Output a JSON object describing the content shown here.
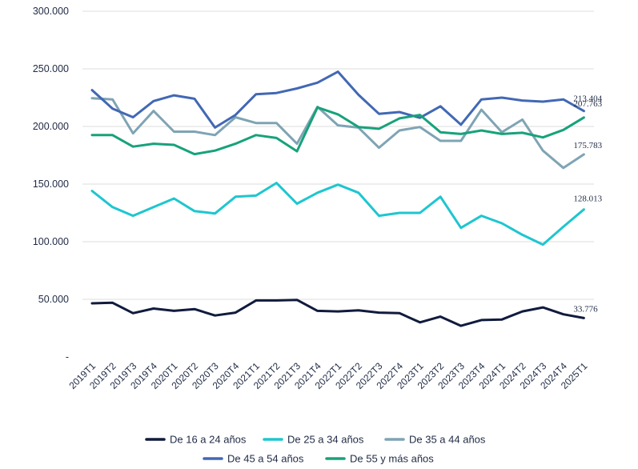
{
  "chart_data": {
    "type": "line",
    "title": "",
    "xlabel": "",
    "ylabel": "",
    "ylim": [
      0,
      300000
    ],
    "y_ticks": [
      {
        "value": 0,
        "label": "-"
      },
      {
        "value": 50000,
        "label": "50.000"
      },
      {
        "value": 100000,
        "label": "100.000"
      },
      {
        "value": 150000,
        "label": "150.000"
      },
      {
        "value": 200000,
        "label": "200.000"
      },
      {
        "value": 250000,
        "label": "250.000"
      },
      {
        "value": 300000,
        "label": "300.000"
      }
    ],
    "grid": true,
    "legend_position": "bottom",
    "categories": [
      "2019T1",
      "2019T2",
      "2019T3",
      "2019T4",
      "2020T1",
      "2020T2",
      "2020T3",
      "2020T4",
      "2021T1",
      "2021T2",
      "2021T3",
      "2021T4",
      "2022T1",
      "2022T2",
      "2022T3",
      "2022T4",
      "2023T1",
      "2023T2",
      "2023T3",
      "2023T4",
      "2024T1",
      "2024T2",
      "2024T3",
      "2024T4",
      "2025T1"
    ],
    "series": [
      {
        "name": "De 16 a 24 años",
        "color": "#101b3d",
        "end_label": "33.776",
        "values": [
          46500,
          47000,
          38000,
          42000,
          40000,
          41500,
          36000,
          38500,
          49000,
          49000,
          49500,
          40000,
          39500,
          40500,
          38500,
          38000,
          30000,
          35000,
          27000,
          32000,
          32500,
          39500,
          43000,
          37000,
          33776
        ]
      },
      {
        "name": "De 25 a 34 años",
        "color": "#1ec6cf",
        "end_label": "128.013",
        "values": [
          144000,
          130000,
          122500,
          130000,
          137500,
          126500,
          124500,
          139000,
          140000,
          151000,
          133000,
          142500,
          149500,
          142500,
          122500,
          125000,
          125000,
          139000,
          112000,
          122500,
          116000,
          106000,
          97500,
          113000,
          128013
        ]
      },
      {
        "name": "De 35 a 44 años",
        "color": "#7fa4b4",
        "end_label": "175.783",
        "values": [
          224500,
          223500,
          194000,
          213500,
          195500,
          195500,
          192500,
          208000,
          203000,
          203000,
          185000,
          217000,
          201000,
          199000,
          181500,
          196500,
          199500,
          187500,
          187500,
          214500,
          195000,
          206000,
          179000,
          164000,
          175783
        ]
      },
      {
        "name": "De 45 a 54 años",
        "color": "#4268b4",
        "end_label": "213.404",
        "values": [
          231500,
          215500,
          208000,
          222000,
          227000,
          224000,
          199000,
          210000,
          228000,
          229000,
          233000,
          238000,
          247500,
          227500,
          211000,
          212500,
          207500,
          217500,
          201500,
          223500,
          225000,
          222500,
          221500,
          223500,
          213404
        ]
      },
      {
        "name": "De 55 y más años",
        "color": "#17a27a",
        "end_label": "207.763",
        "values": [
          192500,
          192500,
          182500,
          185000,
          184000,
          176000,
          179000,
          185000,
          192500,
          190000,
          178500,
          216500,
          210500,
          199500,
          198000,
          207000,
          210000,
          195000,
          193500,
          196500,
          193500,
          194500,
          190500,
          197000,
          207763
        ]
      }
    ]
  }
}
